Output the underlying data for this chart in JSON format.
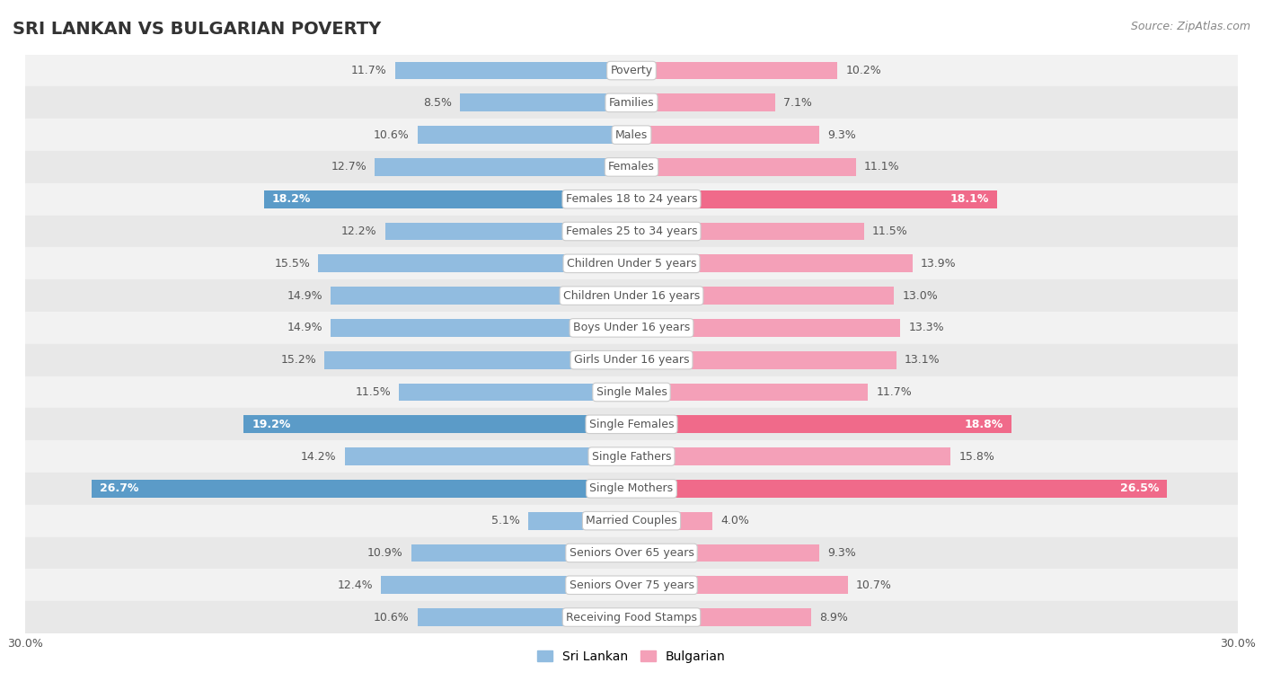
{
  "title": "SRI LANKAN VS BULGARIAN POVERTY",
  "source": "Source: ZipAtlas.com",
  "categories": [
    "Poverty",
    "Families",
    "Males",
    "Females",
    "Females 18 to 24 years",
    "Females 25 to 34 years",
    "Children Under 5 years",
    "Children Under 16 years",
    "Boys Under 16 years",
    "Girls Under 16 years",
    "Single Males",
    "Single Females",
    "Single Fathers",
    "Single Mothers",
    "Married Couples",
    "Seniors Over 65 years",
    "Seniors Over 75 years",
    "Receiving Food Stamps"
  ],
  "sri_lankan": [
    11.7,
    8.5,
    10.6,
    12.7,
    18.2,
    12.2,
    15.5,
    14.9,
    14.9,
    15.2,
    11.5,
    19.2,
    14.2,
    26.7,
    5.1,
    10.9,
    12.4,
    10.6
  ],
  "bulgarian": [
    10.2,
    7.1,
    9.3,
    11.1,
    18.1,
    11.5,
    13.9,
    13.0,
    13.3,
    13.1,
    11.7,
    18.8,
    15.8,
    26.5,
    4.0,
    9.3,
    10.7,
    8.9
  ],
  "sri_lankan_color": "#91BCE0",
  "bulgarian_color": "#F4A0B8",
  "sri_lankan_highlight_color": "#5B9BC8",
  "bulgarian_highlight_color": "#F06A8A",
  "highlight_rows": [
    4,
    11,
    13
  ],
  "axis_max": 30.0,
  "bar_height": 0.55,
  "row_bg_even": "#F2F2F2",
  "row_bg_odd": "#E8E8E8",
  "label_color_normal": "#555555",
  "label_color_highlight": "#FFFFFF",
  "title_fontsize": 14,
  "source_fontsize": 9,
  "cat_fontsize": 9,
  "value_fontsize": 9,
  "axis_label_fontsize": 9,
  "legend_fontsize": 10
}
